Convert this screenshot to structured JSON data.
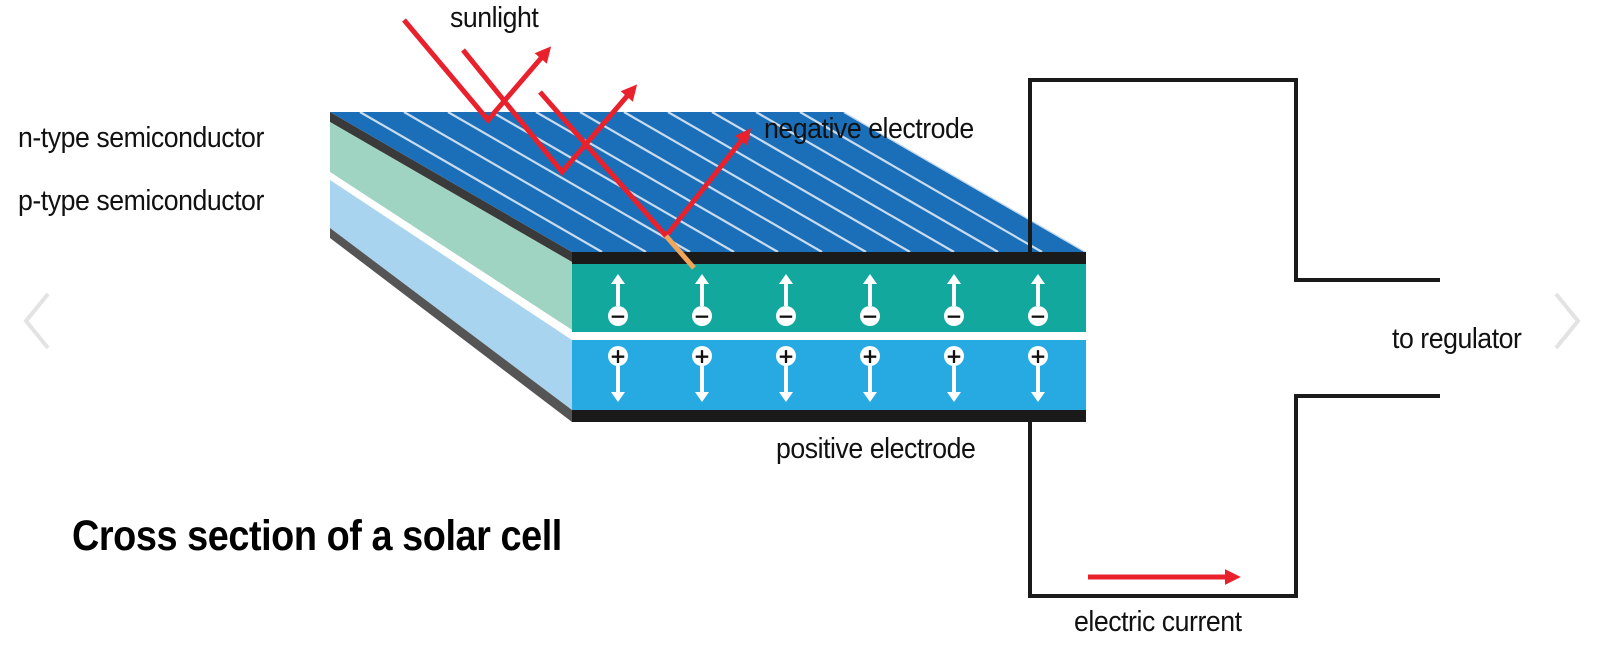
{
  "labels": {
    "sunlight": "sunlight",
    "n_type": "n-type semiconductor",
    "p_type": "p-type semiconductor",
    "negative_electrode": "negative electrode",
    "positive_electrode": "positive electrode",
    "to_regulator": "to regulator",
    "electric_current": "electric current"
  },
  "title": "Cross section of a solar cell",
  "charges": {
    "negative_symbol": "−",
    "positive_symbol": "+",
    "count_per_layer": 6
  },
  "colors": {
    "panel_top": "#1a6fb8",
    "grid_lines": "#c9dcef",
    "n_layer_front": "#13a89e",
    "n_layer_side": "#9fd3c2",
    "p_layer_front": "#27aae1",
    "p_layer_side": "#a8d4f0",
    "electrode": "#1a1a1a",
    "sunlight_ray": "#e8212c",
    "absorbed_ray": "#f2a65a",
    "circuit": "#1a1a1a"
  },
  "icons": {
    "nav_left": "chevron-left-icon",
    "nav_right": "chevron-right-icon"
  }
}
